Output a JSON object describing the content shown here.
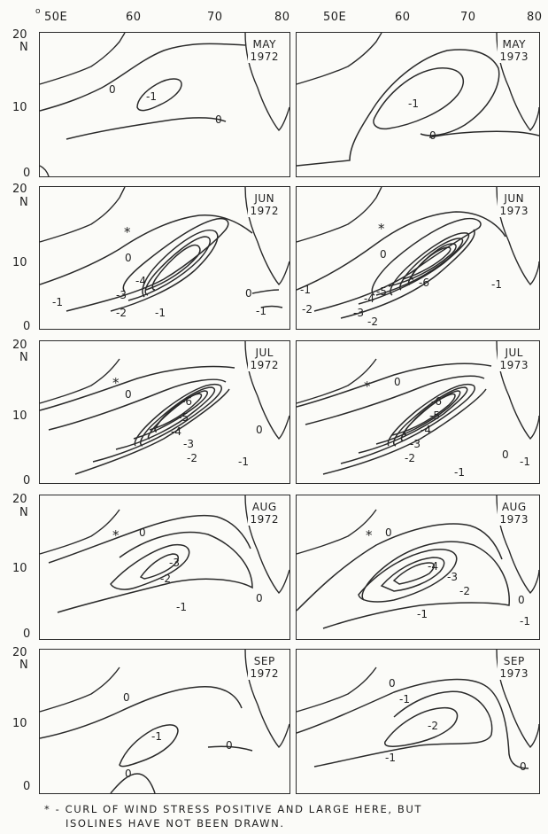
{
  "top_axis": {
    "left": [
      "50E",
      "60",
      "70",
      "80"
    ],
    "right": [
      "50E",
      "60",
      "70",
      "80"
    ]
  },
  "y_axis": {
    "lat_20": "20",
    "unit_n": "N",
    "lat_10": "10",
    "lat_0": "0"
  },
  "panels": [
    {
      "month": "MAY",
      "year": "1972",
      "labels": [
        "0",
        "-1",
        "0"
      ]
    },
    {
      "month": "MAY",
      "year": "1973",
      "labels": [
        "-1",
        "0"
      ]
    },
    {
      "month": "JUN",
      "year": "1972",
      "labels": [
        "*",
        "0",
        "-4",
        "-3",
        "-2",
        "-1",
        "-1",
        "0",
        "-1"
      ]
    },
    {
      "month": "JUN",
      "year": "1973",
      "labels": [
        "*",
        "0",
        "-6",
        "-5",
        "-4",
        "-3",
        "-2",
        "-1",
        "-2",
        "-1"
      ]
    },
    {
      "month": "JUL",
      "year": "1972",
      "labels": [
        "*",
        "0",
        "-6",
        "-5",
        "-4",
        "-3",
        "-2",
        "0",
        "-1"
      ]
    },
    {
      "month": "JUL",
      "year": "1973",
      "labels": [
        "*",
        "0",
        "-6",
        "-5",
        "-4",
        "-3",
        "-2",
        "-1",
        "0",
        "-1"
      ]
    },
    {
      "month": "AUG",
      "year": "1972",
      "labels": [
        "*",
        "0",
        "-3",
        "-2",
        "-1",
        "0"
      ]
    },
    {
      "month": "AUG",
      "year": "1973",
      "labels": [
        "*",
        "0",
        "-4",
        "-3",
        "-2",
        "-1",
        "0",
        "-1"
      ]
    },
    {
      "month": "SEP",
      "year": "1972",
      "labels": [
        "0",
        "-1",
        "0",
        "0"
      ]
    },
    {
      "month": "SEP",
      "year": "1973",
      "labels": [
        "0",
        "-1",
        "-2",
        "-1",
        "0"
      ]
    }
  ],
  "footnote": {
    "line1": "* - CURL OF WIND STRESS POSITIVE AND LARGE HERE, BUT",
    "line2": "ISOLINES HAVE NOT BEEN DRAWN."
  }
}
